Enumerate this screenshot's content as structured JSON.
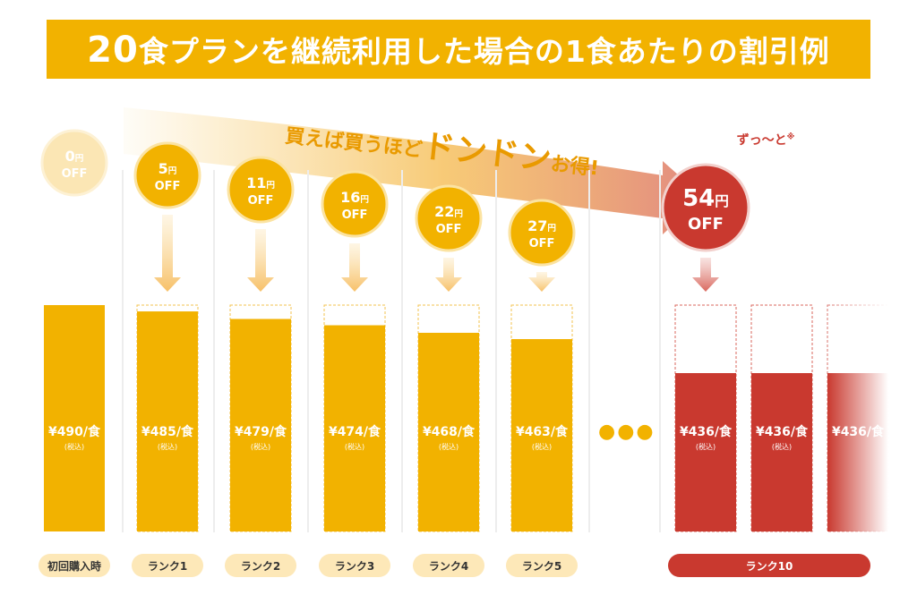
{
  "banner": {
    "title_number": "20",
    "title_rest": "食プランを継続利用した場合の1食あたりの割引例"
  },
  "slogan": {
    "part1": "買えば買うほど",
    "part2": "ドンドン",
    "part3": "お得!"
  },
  "forever": {
    "label": "ずっ〜と",
    "mark": "※"
  },
  "ellipsis": "●●●",
  "colors": {
    "accent": "#f2b200",
    "accent_light": "#fbe6b4",
    "red": "#c9392f",
    "label_bg": "#fde8b8"
  },
  "chart_data": {
    "type": "bar",
    "title": "20食プランを継続利用した場合の1食あたりの割引例",
    "xlabel": "",
    "ylabel": "",
    "unit_prefix": "¥",
    "unit_suffix": "/食",
    "tax_note": "(税込)",
    "discount_unit": "円",
    "discount_suffix": "OFF",
    "base_price": 490,
    "categories": [
      "初回購入時",
      "ランク1",
      "ランク2",
      "ランク3",
      "ランク4",
      "ランク5",
      "ランク10"
    ],
    "values": [
      490,
      485,
      479,
      474,
      468,
      463,
      436
    ],
    "discounts": [
      0,
      5,
      11,
      16,
      22,
      27,
      54
    ],
    "ylim": [
      436,
      490
    ],
    "grid": false,
    "legend": "none"
  }
}
